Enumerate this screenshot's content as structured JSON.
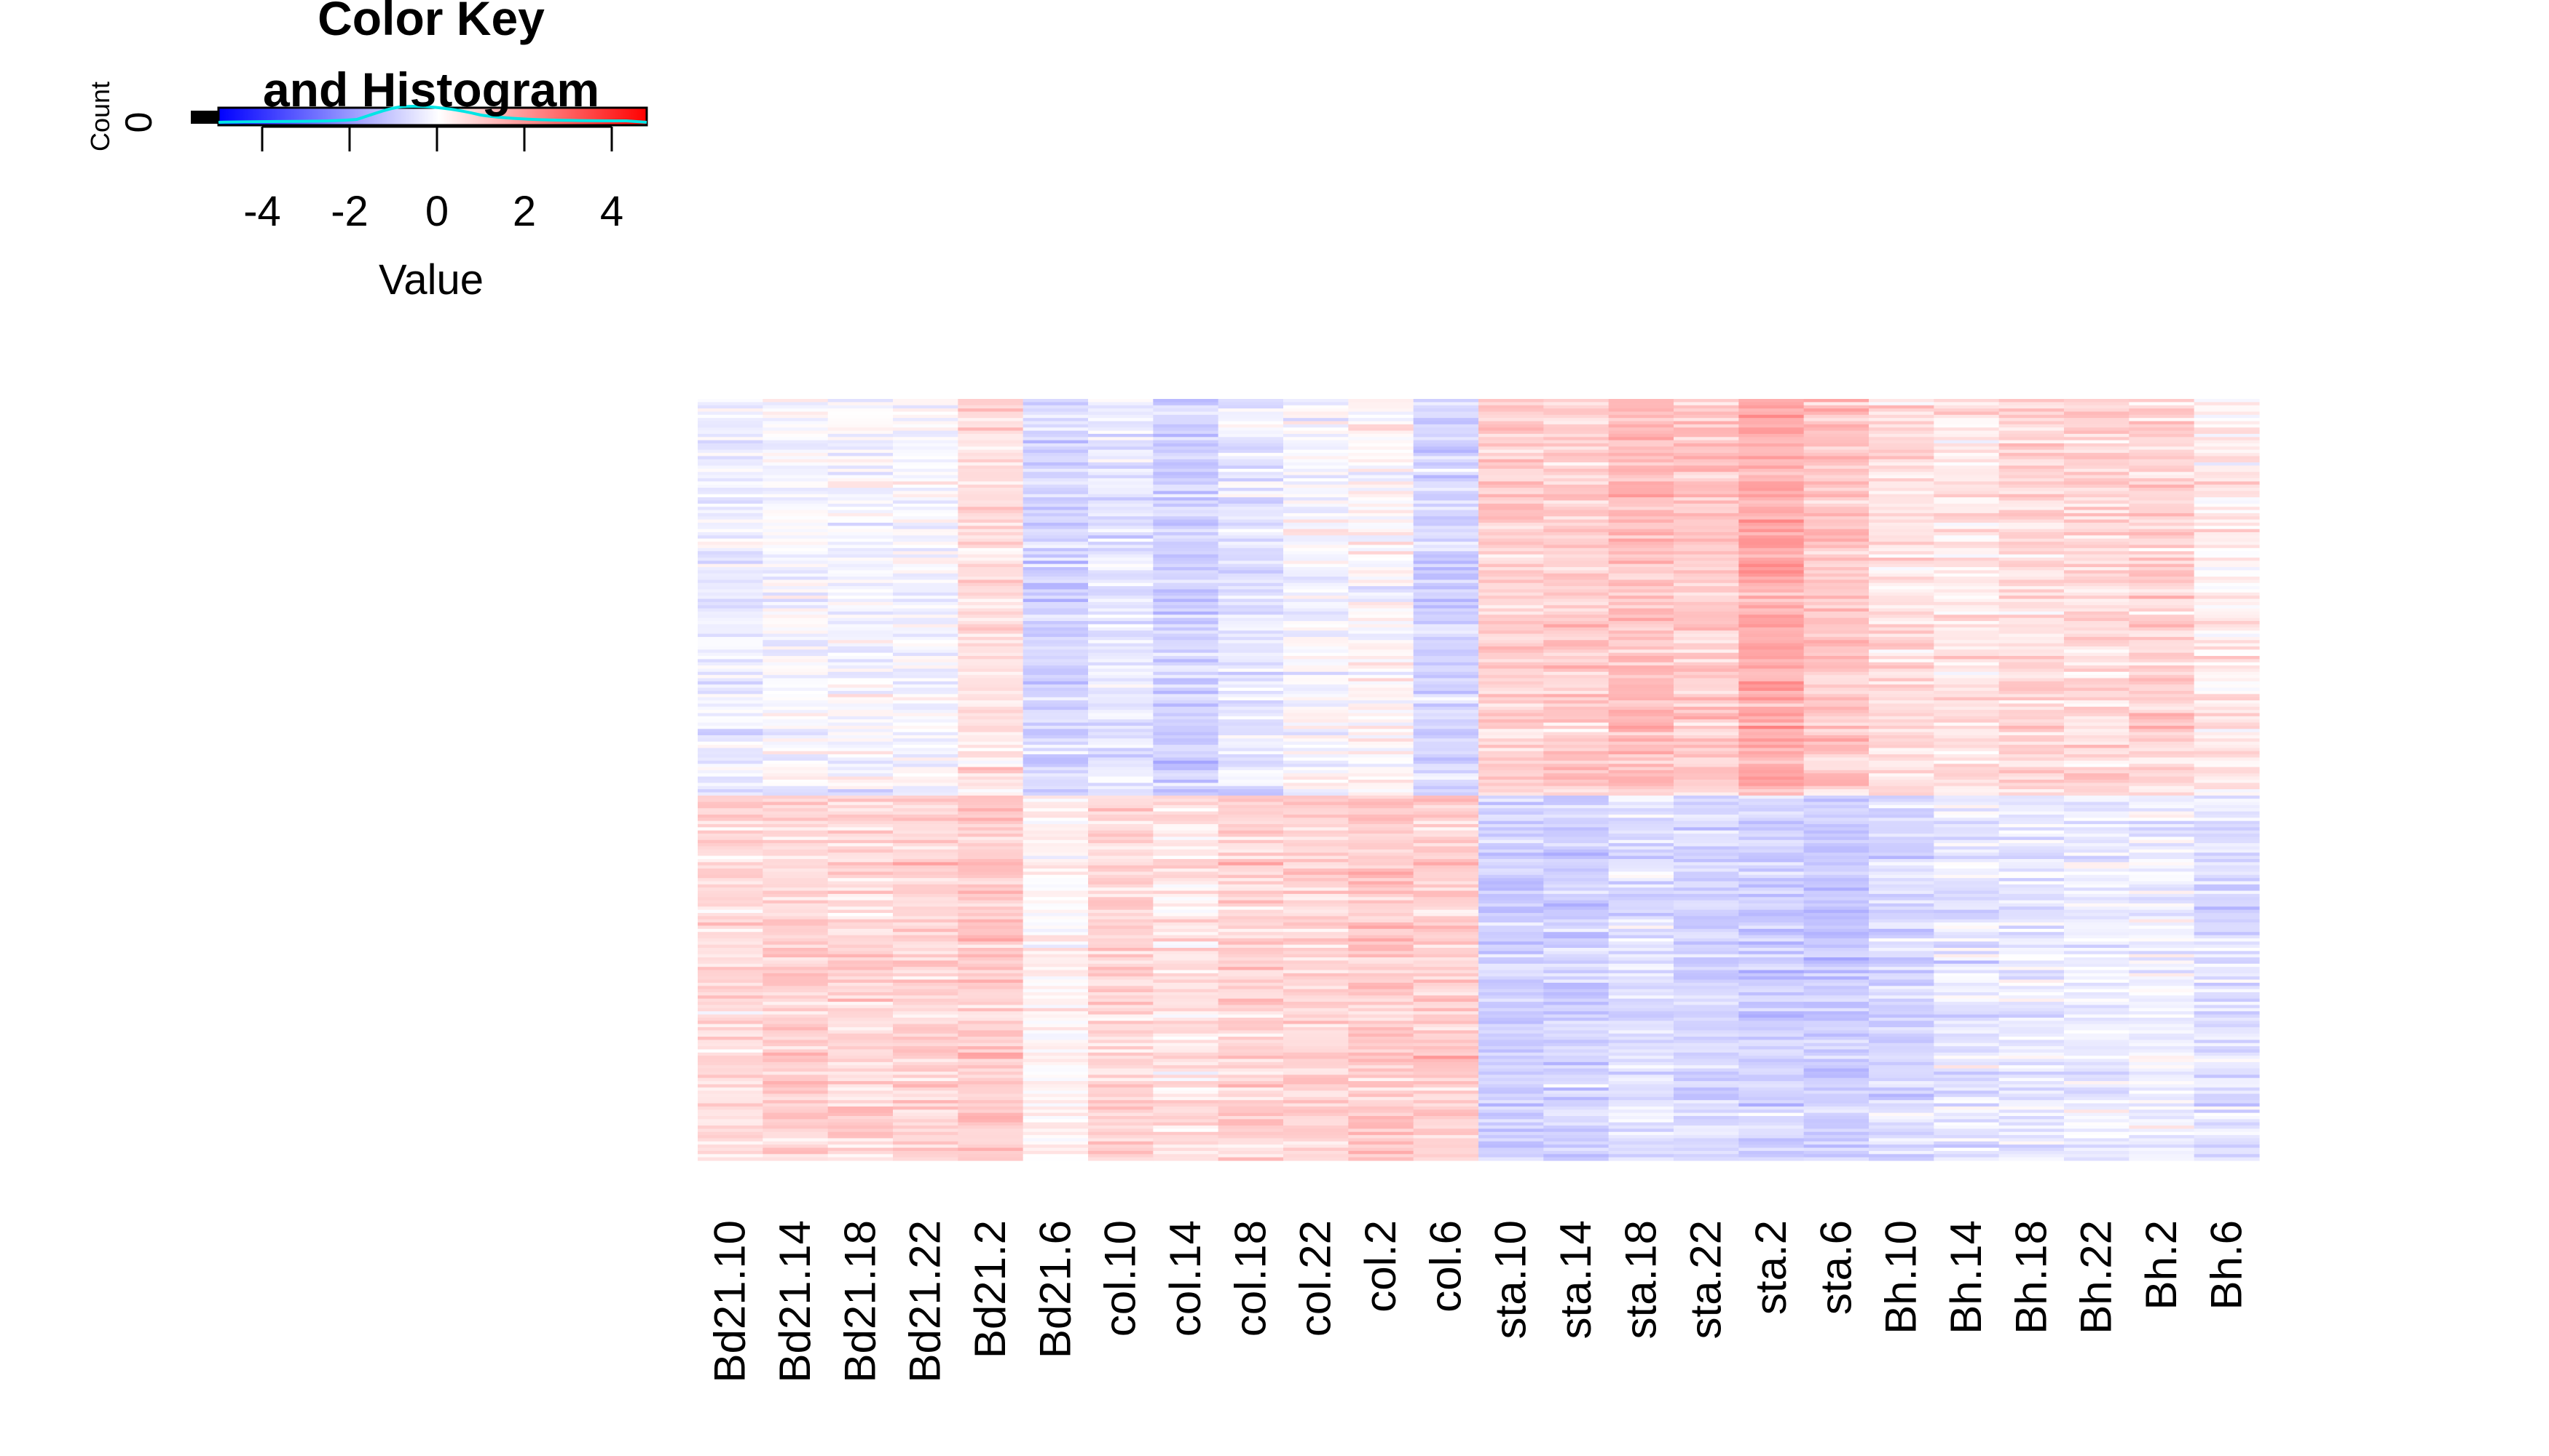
{
  "color_key": {
    "title_line1": "Color Key",
    "title_line2": "and Histogram",
    "ylabel": "Count",
    "y_tick": "0",
    "xlabel": "Value",
    "x_ticks": [
      "-4",
      "-2",
      "0",
      "2",
      "4"
    ],
    "x_tick_values": [
      -4,
      -2,
      0,
      2,
      4
    ],
    "range": [
      -5,
      4.8
    ],
    "colors": {
      "low": "#0000ff",
      "mid": "#ffffff",
      "high": "#ff0000",
      "density_line": "#00e5e5"
    }
  },
  "chart_data": {
    "type": "heatmap",
    "columns": [
      "Bd21.10",
      "Bd21.14",
      "Bd21.18",
      "Bd21.22",
      "Bd21.2",
      "Bd21.6",
      "col.10",
      "col.14",
      "col.18",
      "col.22",
      "col.2",
      "col.6",
      "sta.10",
      "sta.14",
      "sta.18",
      "sta.22",
      "sta.2",
      "sta.6",
      "Bh.10",
      "Bh.14",
      "Bh.18",
      "Bh.22",
      "Bh.2",
      "Bh.6"
    ],
    "row_count": 240,
    "row_cluster_split": 0.52,
    "value_range": [
      -5,
      4.8
    ],
    "row_labels_shown": false,
    "block_means": {
      "cluster_top": [
        -0.35,
        -0.1,
        -0.15,
        -0.15,
        0.6,
        -0.9,
        -0.5,
        -0.9,
        -0.5,
        -0.1,
        0.1,
        -0.8,
        0.9,
        0.9,
        1.2,
        1.0,
        1.6,
        1.0,
        0.6,
        0.5,
        0.7,
        0.7,
        0.8,
        0.3
      ],
      "cluster_bottom": [
        0.7,
        0.8,
        0.7,
        0.8,
        1.0,
        0.2,
        0.8,
        0.5,
        0.8,
        0.8,
        1.0,
        0.9,
        -0.9,
        -0.9,
        -0.6,
        -0.8,
        -0.9,
        -1.0,
        -0.7,
        -0.5,
        -0.4,
        -0.3,
        -0.3,
        -0.6
      ]
    }
  }
}
